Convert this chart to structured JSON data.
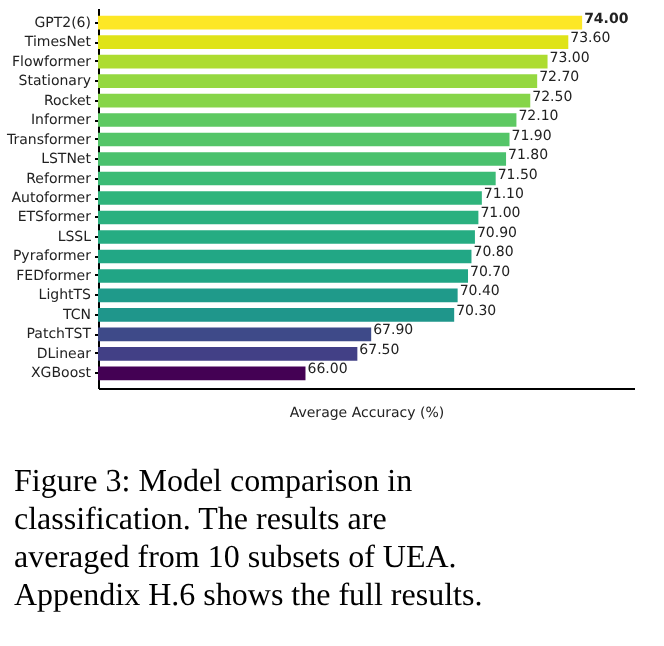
{
  "chart_data": {
    "type": "bar",
    "orientation": "horizontal",
    "xlabel": "Average Accuracy (%)",
    "categories": [
      "GPT2(6)",
      "TimesNet",
      "Flowformer",
      "Stationary",
      "Rocket",
      "Informer",
      "Transformer",
      "LSTNet",
      "Reformer",
      "Autoformer",
      "ETSformer",
      "LSSL",
      "Pyraformer",
      "FEDformer",
      "LightTS",
      "TCN",
      "PatchTST",
      "DLinear",
      "XGBoost"
    ],
    "values": [
      74.0,
      73.6,
      73.0,
      72.7,
      72.5,
      72.1,
      71.9,
      71.8,
      71.5,
      71.1,
      71.0,
      70.9,
      70.8,
      70.7,
      70.4,
      70.3,
      67.9,
      67.5,
      66.0
    ],
    "value_labels": [
      "74.00",
      "73.60",
      "73.00",
      "72.70",
      "72.50",
      "72.10",
      "71.90",
      "71.80",
      "71.50",
      "71.10",
      "71.00",
      "70.90",
      "70.80",
      "70.70",
      "70.40",
      "70.30",
      "67.90",
      "67.50",
      "66.00"
    ],
    "colors": [
      "#fde725",
      "#dfe318",
      "#addc30",
      "#95d840",
      "#86d549",
      "#5ec962",
      "#54c568",
      "#4ac16d",
      "#3bbb75",
      "#2fb47c",
      "#2ab07f",
      "#25ac82",
      "#22a785",
      "#21a585",
      "#1f9a8a",
      "#1f968b",
      "#3e4a89",
      "#424086",
      "#440154"
    ],
    "xlim": [
      60,
      75.5
    ],
    "tick_labels": "y",
    "grid": false,
    "annotations": [
      "Figure 3: Model comparison in classification. The results are averaged from 10 subsets of UEA. Appendix H.6 shows the full results."
    ]
  }
}
